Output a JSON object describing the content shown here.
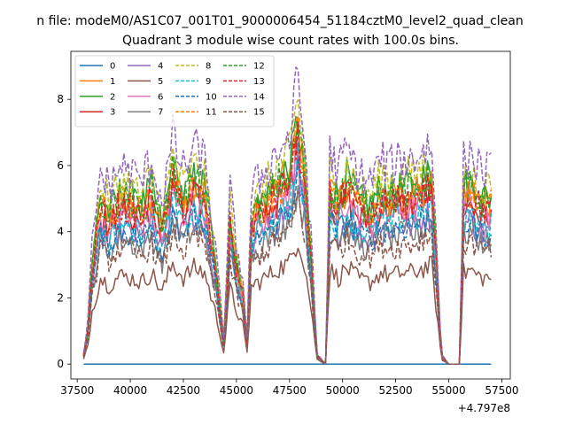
{
  "figure": {
    "suptitle": "n file: modeM0/AS1C07_001T01_9000006454_51184cztM0_level2_quad_clean"
  },
  "chart_data": {
    "type": "line",
    "title": "Quadrant 3 module wise count rates with 100.0s bins.",
    "xlabel": "",
    "ylabel": "",
    "x_offset_label": "+4.797e8",
    "xlim": [
      37200,
      57900
    ],
    "ylim": [
      -0.45,
      9.45
    ],
    "x_ticks": [
      37500,
      40000,
      42500,
      45000,
      47500,
      50000,
      52500,
      55000,
      57500
    ],
    "x_tick_labels": [
      "37500",
      "40000",
      "42500",
      "45000",
      "47500",
      "50000",
      "52500",
      "55000",
      "57500"
    ],
    "y_ticks": [
      0,
      2,
      4,
      6,
      8
    ],
    "y_tick_labels": [
      "0",
      "2",
      "4",
      "6",
      "8"
    ],
    "grid": false,
    "legend": {
      "placement": "top-left",
      "columns": 4
    },
    "x_range": [
      37800,
      57000
    ],
    "series": [
      {
        "name": "0",
        "color": "#1f77b4",
        "dash": "solid",
        "values": []
      },
      {
        "name": "1",
        "color": "#ff7f0e",
        "dash": "solid",
        "values": []
      },
      {
        "name": "2",
        "color": "#2ca02c",
        "dash": "solid",
        "values": []
      },
      {
        "name": "3",
        "color": "#d62728",
        "dash": "solid",
        "values": []
      },
      {
        "name": "4",
        "color": "#9467bd",
        "dash": "solid",
        "values": []
      },
      {
        "name": "5",
        "color": "#8c564b",
        "dash": "solid",
        "values": []
      },
      {
        "name": "6",
        "color": "#e377c2",
        "dash": "solid",
        "values": []
      },
      {
        "name": "7",
        "color": "#7f7f7f",
        "dash": "solid",
        "values": []
      },
      {
        "name": "8",
        "color": "#bcbd22",
        "dash": "dashed",
        "values": []
      },
      {
        "name": "9",
        "color": "#17becf",
        "dash": "dashed",
        "values": []
      },
      {
        "name": "10",
        "color": "#1f77b4",
        "dash": "dashed",
        "values": []
      },
      {
        "name": "11",
        "color": "#ff7f0e",
        "dash": "dashed",
        "values": []
      },
      {
        "name": "12",
        "color": "#2ca02c",
        "dash": "dashed",
        "values": []
      },
      {
        "name": "13",
        "color": "#d62728",
        "dash": "dashed",
        "values": []
      },
      {
        "name": "14",
        "color": "#9467bd",
        "dash": "dashed",
        "values": []
      },
      {
        "name": "15",
        "color": "#8c564b",
        "dash": "dashed",
        "values": []
      }
    ],
    "levels": {
      "0": 0,
      "1": 5.4,
      "2": 5.6,
      "3": 5.0,
      "4": 4.4,
      "5": 2.9,
      "6": 4.9,
      "7": 4.1,
      "8": 6.0,
      "9": 4.6,
      "10": 4.4,
      "11": 5.3,
      "12": 5.5,
      "13": 5.2,
      "14": 6.5,
      "15": 3.8
    },
    "envelope": [
      [
        37800,
        0.05
      ],
      [
        38000,
        0.2
      ],
      [
        38200,
        0.55
      ],
      [
        38600,
        0.9
      ],
      [
        39000,
        0.82
      ],
      [
        39500,
        0.92
      ],
      [
        40000,
        0.9
      ],
      [
        40500,
        0.85
      ],
      [
        41000,
        0.95
      ],
      [
        41500,
        0.75
      ],
      [
        42000,
        1.05
      ],
      [
        42500,
        0.9
      ],
      [
        43000,
        1.0
      ],
      [
        43500,
        0.95
      ],
      [
        44000,
        0.55
      ],
      [
        44400,
        0.12
      ],
      [
        44700,
        0.8
      ],
      [
        45000,
        0.55
      ],
      [
        45300,
        0.4
      ],
      [
        45500,
        0.12
      ],
      [
        45700,
        0.8
      ],
      [
        46000,
        0.85
      ],
      [
        46500,
        0.92
      ],
      [
        47000,
        1.0
      ],
      [
        47500,
        1.05
      ],
      [
        47900,
        1.32
      ],
      [
        48200,
        1.05
      ],
      [
        48500,
        0.6
      ],
      [
        48800,
        0.05
      ],
      [
        49200,
        0.0
      ],
      [
        49400,
        0.98
      ],
      [
        49800,
        0.9
      ],
      [
        50200,
        1.0
      ],
      [
        50800,
        0.88
      ],
      [
        51300,
        0.85
      ],
      [
        51800,
        0.95
      ],
      [
        52300,
        0.92
      ],
      [
        52800,
        0.95
      ],
      [
        53300,
        0.95
      ],
      [
        53800,
        1.0
      ],
      [
        54200,
        1.02
      ],
      [
        54500,
        0.4
      ],
      [
        54650,
        0.05
      ],
      [
        55000,
        0.0
      ],
      [
        55500,
        0.0
      ],
      [
        55700,
        0.95
      ],
      [
        56000,
        0.98
      ],
      [
        56500,
        0.9
      ],
      [
        57000,
        0.9
      ]
    ]
  }
}
